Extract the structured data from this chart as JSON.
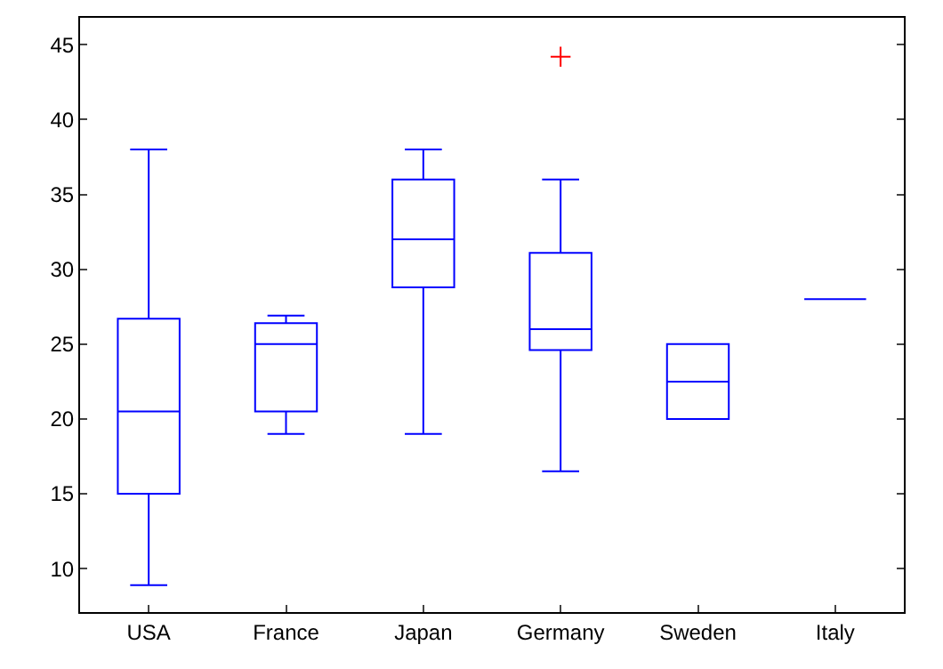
{
  "chart_data": {
    "type": "box",
    "categories": [
      "USA",
      "France",
      "Japan",
      "Germany",
      "Sweden",
      "Italy"
    ],
    "series": [
      {
        "color": "#0000ff",
        "boxes": [
          {
            "low": 8.9,
            "q1": 15,
            "median": 20.5,
            "q3": 26.7,
            "high": 38
          },
          {
            "low": 19,
            "q1": 20.5,
            "median": 25,
            "q3": 26.4,
            "high": 26.9
          },
          {
            "low": 19,
            "q1": 28.8,
            "median": 32,
            "q3": 36,
            "high": 38
          },
          {
            "low": 16.5,
            "q1": 24.6,
            "median": 26,
            "q3": 31.1,
            "high": 36,
            "outliers": [
              44.2
            ]
          },
          {
            "low": 20,
            "q1": 20,
            "median": 22.5,
            "q3": 25,
            "high": 25
          },
          {
            "low": 28,
            "q1": 28,
            "median": 28,
            "q3": 28,
            "high": 28
          }
        ]
      }
    ],
    "ylim": [
      7.1,
      46.8
    ],
    "yticks": [
      10,
      15,
      20,
      25,
      30,
      35,
      40,
      45
    ],
    "grid": false,
    "marker": "cross"
  }
}
